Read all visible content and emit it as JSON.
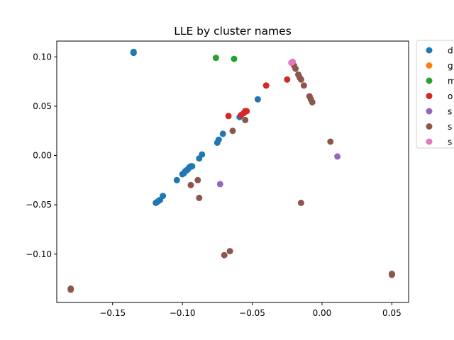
{
  "chart_data": {
    "type": "scatter",
    "title": "LLE by cluster names",
    "xlabel": "",
    "ylabel": "",
    "xlim": [
      -0.19,
      0.062
    ],
    "ylim": [
      -0.149,
      0.116
    ],
    "xticks": [
      -0.15,
      -0.1,
      -0.05,
      0.0,
      0.05
    ],
    "xtick_labels": [
      "−0.15",
      "−0.10",
      "−0.05",
      "0.00",
      "0.05"
    ],
    "yticks": [
      -0.1,
      -0.05,
      0.0,
      0.05,
      0.1
    ],
    "ytick_labels": [
      "−0.10",
      "−0.05",
      "0.00",
      "0.05",
      "0.10"
    ],
    "grid": false,
    "legend_position": "outside-right",
    "series": [
      {
        "name": "d",
        "color": "#1f77b4",
        "x": [
          -0.135,
          -0.135,
          -0.119,
          -0.118,
          -0.117,
          -0.116,
          -0.114,
          -0.104,
          -0.1,
          -0.099,
          -0.098,
          -0.097,
          -0.096,
          -0.095,
          -0.094,
          -0.093,
          -0.088,
          -0.086,
          -0.075,
          -0.074,
          -0.071,
          -0.059,
          -0.046
        ],
        "y": [
          0.105,
          0.104,
          -0.048,
          -0.047,
          -0.046,
          -0.045,
          -0.041,
          -0.025,
          -0.019,
          -0.018,
          -0.016,
          -0.015,
          -0.014,
          -0.012,
          -0.011,
          -0.011,
          -0.003,
          0.001,
          0.013,
          0.016,
          0.022,
          0.039,
          0.057
        ]
      },
      {
        "name": "g",
        "color": "#ff7f0e",
        "x": [],
        "y": []
      },
      {
        "name": "m",
        "color": "#2ca02c",
        "x": [
          -0.076,
          -0.063
        ],
        "y": [
          0.099,
          0.098
        ]
      },
      {
        "name": "o",
        "color": "#d62728",
        "x": [
          -0.067,
          -0.058,
          -0.056,
          -0.055,
          -0.054,
          -0.04,
          -0.025,
          -0.009
        ],
        "y": [
          0.04,
          0.041,
          0.043,
          0.045,
          0.045,
          0.071,
          0.077,
          0.06
        ]
      },
      {
        "name": "s",
        "color": "#9467bd",
        "x": [
          -0.073,
          0.011
        ],
        "y": [
          -0.029,
          -0.001
        ]
      },
      {
        "name": "s",
        "color": "#8c564b",
        "x": [
          -0.18,
          -0.18,
          0.05,
          0.05,
          -0.094,
          -0.089,
          -0.088,
          -0.07,
          -0.066,
          -0.064,
          -0.055,
          -0.02,
          -0.019,
          -0.017,
          -0.016,
          -0.015,
          -0.013,
          -0.009,
          -0.008,
          -0.007,
          0.006,
          -0.015
        ],
        "y": [
          -0.135,
          -0.136,
          -0.12,
          -0.121,
          -0.03,
          -0.025,
          -0.043,
          -0.101,
          -0.097,
          0.025,
          0.036,
          0.091,
          0.088,
          0.082,
          0.079,
          0.077,
          0.071,
          0.06,
          0.057,
          0.054,
          0.014,
          -0.048
        ]
      },
      {
        "name": "s",
        "color": "#e377c2",
        "x": [
          -0.021,
          -0.022
        ],
        "y": [
          0.095,
          0.094
        ]
      }
    ]
  }
}
